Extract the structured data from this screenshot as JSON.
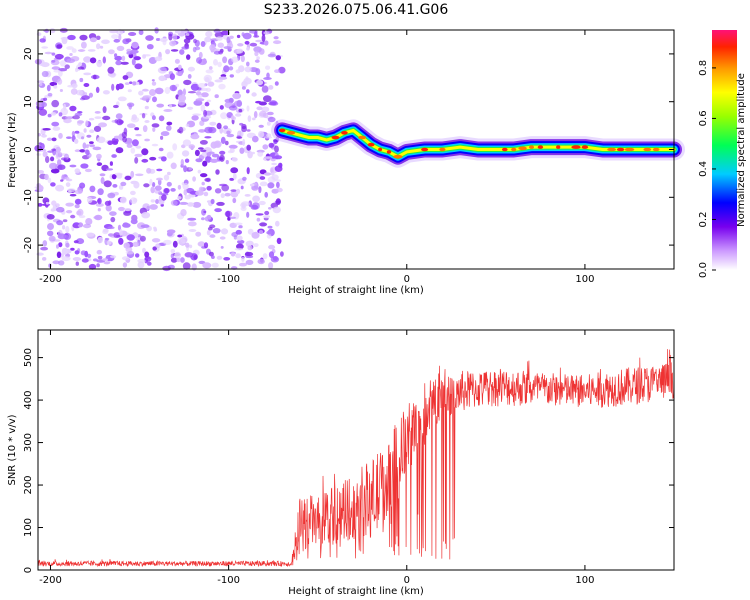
{
  "figure_title": "S233.2026.075.06.41.G06",
  "chart_data": [
    {
      "type": "heatmap",
      "name": "spectrogram",
      "xlabel": "Height of straight line (km)",
      "ylabel": "Frequency (Hz)",
      "xlim": [
        -207,
        150
      ],
      "ylim": [
        -25,
        25
      ],
      "xticks": [
        -200,
        -100,
        0,
        100
      ],
      "yticks": [
        -20,
        -10,
        0,
        10,
        20
      ],
      "noise_region": {
        "x_start": -207,
        "x_end": -70,
        "amplitude_level": 0.15
      },
      "signal_track": {
        "x": [
          -70,
          -65,
          -60,
          -55,
          -50,
          -45,
          -40,
          -35,
          -30,
          -25,
          -20,
          -15,
          -10,
          -5,
          0,
          10,
          20,
          30,
          40,
          50,
          60,
          70,
          80,
          90,
          100,
          110,
          120,
          130,
          140,
          150
        ],
        "y": [
          4,
          3.5,
          3,
          2.5,
          2.5,
          2,
          2.5,
          3.5,
          4,
          2.5,
          1,
          0,
          -0.5,
          -1.5,
          -0.5,
          0,
          0,
          0.5,
          0,
          0,
          0,
          0.5,
          0.5,
          0.5,
          0.5,
          0,
          0,
          0,
          0,
          0
        ],
        "peak_amplitude": 0.95
      },
      "colorbar": {
        "label": "Normalized spectral amplitude",
        "range": [
          0,
          0.95
        ],
        "ticks": [
          0.0,
          0.2,
          0.4,
          0.6,
          0.8
        ]
      }
    },
    {
      "type": "line",
      "name": "snr",
      "xlabel": "Height of straight line (km)",
      "ylabel": "SNR (10 * v/v)",
      "xlim": [
        -207,
        150
      ],
      "ylim": [
        0,
        565
      ],
      "xticks": [
        -200,
        -100,
        0,
        100
      ],
      "yticks": [
        0,
        100,
        200,
        300,
        400,
        500
      ],
      "color": "#ee3333",
      "envelope": {
        "x": [
          -207,
          -65,
          -62,
          -60,
          -55,
          -50,
          -40,
          -30,
          -20,
          -10,
          -5,
          0,
          5,
          10,
          15,
          20,
          30,
          40,
          50,
          60,
          80,
          100,
          120,
          140,
          150
        ],
        "mean": [
          15,
          15,
          60,
          100,
          120,
          110,
          130,
          150,
          170,
          200,
          260,
          300,
          340,
          360,
          390,
          410,
          420,
          425,
          430,
          430,
          425,
          420,
          430,
          440,
          450
        ],
        "spread": [
          6,
          6,
          50,
          70,
          60,
          60,
          70,
          80,
          90,
          110,
          100,
          90,
          80,
          70,
          60,
          50,
          50,
          45,
          45,
          45,
          40,
          40,
          45,
          45,
          45
        ]
      },
      "deep_dips_region": [
        -65,
        28
      ]
    }
  ]
}
